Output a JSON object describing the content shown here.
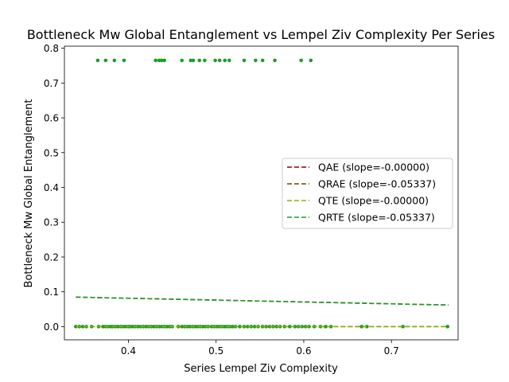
{
  "chart_data": {
    "type": "scatter",
    "title": "Bottleneck Mw Global Entanglement vs Lempel Ziv Complexity Per Series",
    "xlabel": "Series Lempel Ziv Complexity",
    "ylabel": "Bottleneck Mw Global Entanglement",
    "xlim": [
      0.327,
      0.776
    ],
    "ylim": [
      -0.038,
      0.806
    ],
    "xticks": [
      0.4,
      0.5,
      0.6,
      0.7
    ],
    "yticks": [
      0.0,
      0.1,
      0.2,
      0.3,
      0.4,
      0.5,
      0.6,
      0.7,
      0.8
    ],
    "grid": false,
    "legend_position": "center-right",
    "point_color": "#1f9b2a",
    "series": [
      {
        "name": "QAE (slope=-0.00000)",
        "color": "#8b0000",
        "trend": {
          "x": [
            0.34,
            0.765
          ],
          "y": [
            0.0,
            0.0
          ]
        }
      },
      {
        "name": "QRAE (slope=-0.05337)",
        "color": "#6b4a00",
        "trend": {
          "x": [
            0.34,
            0.765
          ],
          "y": [
            0.0847,
            0.062
          ]
        }
      },
      {
        "name": "QTE (slope=-0.00000)",
        "color": "#7cbf00",
        "trend": {
          "x": [
            0.34,
            0.765
          ],
          "y": [
            0.0,
            0.0
          ]
        }
      },
      {
        "name": "QRTE (slope=-0.05337)",
        "color": "#1f9b2a",
        "trend": {
          "x": [
            0.34,
            0.765
          ],
          "y": [
            0.0847,
            0.062
          ]
        }
      }
    ],
    "points": {
      "high_y": 0.765,
      "high_x": [
        0.365,
        0.374,
        0.384,
        0.395,
        0.431,
        0.435,
        0.438,
        0.441,
        0.461,
        0.471,
        0.474,
        0.481,
        0.487,
        0.499,
        0.504,
        0.51,
        0.515,
        0.532,
        0.545,
        0.553,
        0.567,
        0.597,
        0.608
      ],
      "zero_y": 0.0,
      "zero_x": [
        0.34,
        0.344,
        0.348,
        0.352,
        0.358,
        0.366,
        0.371,
        0.374,
        0.377,
        0.38,
        0.382,
        0.385,
        0.388,
        0.391,
        0.394,
        0.397,
        0.4,
        0.402,
        0.405,
        0.408,
        0.411,
        0.414,
        0.417,
        0.42,
        0.423,
        0.426,
        0.429,
        0.432,
        0.435,
        0.438,
        0.441,
        0.444,
        0.447,
        0.45,
        0.457,
        0.461,
        0.464,
        0.467,
        0.47,
        0.473,
        0.476,
        0.479,
        0.482,
        0.485,
        0.488,
        0.491,
        0.495,
        0.498,
        0.501,
        0.504,
        0.507,
        0.51,
        0.513,
        0.516,
        0.519,
        0.522,
        0.527,
        0.532,
        0.536,
        0.54,
        0.544,
        0.548,
        0.553,
        0.557,
        0.561,
        0.565,
        0.569,
        0.573,
        0.578,
        0.584,
        0.59,
        0.594,
        0.598,
        0.602,
        0.606,
        0.612,
        0.619,
        0.625,
        0.631,
        0.666,
        0.672,
        0.713,
        0.764
      ]
    }
  }
}
